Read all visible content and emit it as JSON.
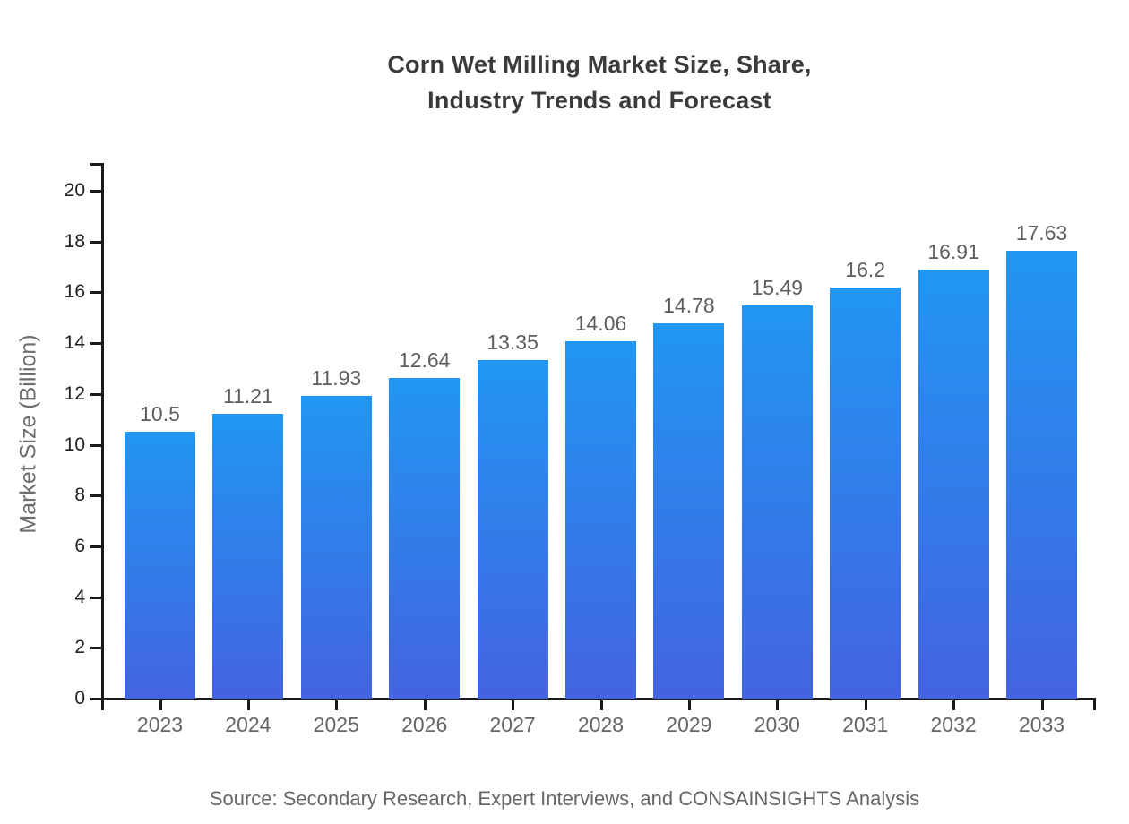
{
  "page": {
    "background_color": "#ffffff"
  },
  "chart_data": {
    "type": "bar",
    "title": "Corn Wet Milling Market Size, Share, Industry Trends and Forecast",
    "title_lines": [
      "Corn Wet Milling Market Size, Share,",
      "Industry Trends and Forecast"
    ],
    "categories": [
      "2023",
      "2024",
      "2025",
      "2026",
      "2027",
      "2028",
      "2029",
      "2030",
      "2031",
      "2032",
      "2033"
    ],
    "values": [
      10.5,
      11.21,
      11.93,
      12.64,
      13.35,
      14.06,
      14.78,
      15.49,
      16.2,
      16.91,
      17.63
    ],
    "value_labels": [
      "10.5",
      "11.21",
      "11.93",
      "12.64",
      "13.35",
      "14.06",
      "14.78",
      "15.49",
      "16.2",
      "16.91",
      "17.63"
    ],
    "xlabel": "",
    "ylabel": "Market Size (Billion)",
    "ylim": [
      0,
      20
    ],
    "ytick_step": 2,
    "ytick_labels": [
      "0",
      "2",
      "4",
      "6",
      "8",
      "10",
      "12",
      "14",
      "16",
      "18",
      "20"
    ],
    "grid": false,
    "legend_position": "none",
    "source_note": "Source: Secondary Research, Expert Interviews, and CONSAINSIGHTS Analysis",
    "colors": {
      "bar_gradient_top": "#2196f3",
      "bar_gradient_bottom": "#4363df",
      "axis_line": "#1a1a1a",
      "title_text": "#3b3b3b",
      "ytick_text": "#212121",
      "category_text": "#666666",
      "value_label_text": "#5f5f5f",
      "axis_title_text": "#6e6e6e",
      "source_text": "#666666"
    }
  }
}
